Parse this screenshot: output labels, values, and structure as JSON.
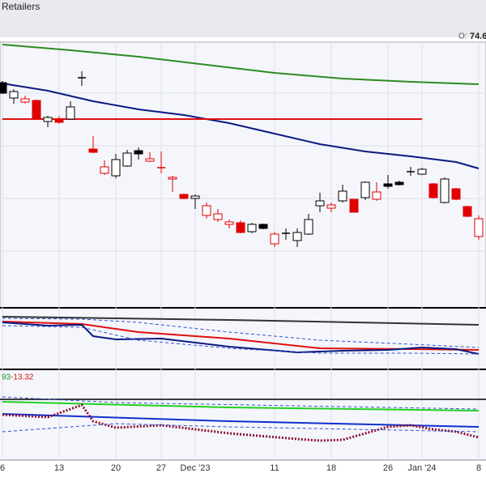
{
  "header": {
    "title": "Retailers",
    "open_label": "O:",
    "open_value": "74.6"
  },
  "panel3_labels": [
    "93",
    "-13.32"
  ],
  "chart_data": {
    "type": "candlestick",
    "categories": [
      "6",
      null,
      null,
      null,
      null,
      "13",
      null,
      null,
      null,
      null,
      "20",
      null,
      null,
      null,
      "27",
      null,
      null,
      "Dec '23",
      null,
      null,
      null,
      null,
      null,
      null,
      "11",
      null,
      null,
      null,
      null,
      "18",
      null,
      null,
      null,
      null,
      "26",
      null,
      null,
      "Jan '24",
      null,
      null,
      null,
      null,
      "8"
    ],
    "open": [
      278,
      259,
      254,
      256,
      230,
      233,
      233,
      284,
      196,
      166,
      163,
      175,
      194,
      181,
      173,
      159,
      140,
      135,
      114,
      109,
      103,
      105,
      94,
      103,
      79,
      92,
      83,
      91,
      126,
      123,
      132,
      134,
      136,
      134,
      153,
      155,
      168,
      165,
      153,
      130,
      147,
      125,
      88
    ],
    "high": [
      280,
      270,
      262,
      257,
      237,
      237,
      255,
      292,
      212,
      182,
      190,
      195,
      198,
      192,
      193,
      163,
      141,
      140,
      130,
      122,
      109,
      108,
      105,
      104,
      94,
      98,
      98,
      116,
      142,
      130,
      152,
      134,
      156,
      155,
      164,
      157,
      174,
      173,
      154,
      161,
      148,
      126,
      114
    ],
    "low": [
      264,
      252,
      252,
      233,
      223,
      227,
      232,
      274,
      191,
      164,
      160,
      174,
      183,
      180,
      166,
      143,
      134,
      122,
      110,
      106,
      98,
      92,
      92,
      97,
      75,
      84,
      75,
      90,
      118,
      118,
      130,
      118,
      133,
      132,
      147,
      151,
      163,
      164,
      135,
      129,
      133,
      112,
      84
    ],
    "close": [
      265,
      267,
      258,
      234,
      235,
      229,
      248,
      284,
      192,
      174,
      183,
      191,
      190,
      184,
      173,
      161,
      135,
      138,
      126,
      116,
      106,
      93,
      103,
      98,
      91,
      92,
      93,
      109,
      132,
      127,
      144,
      118,
      155,
      143,
      150,
      152,
      168,
      171,
      136,
      159,
      134,
      113,
      110
    ],
    "colors": [
      "#000000",
      "#000000",
      "#e00000",
      "#e00000",
      "#000000",
      "#e00000",
      "#000000",
      "#000000",
      "#e00000",
      "#e00000",
      "#000000",
      "#000000",
      "#000000",
      "#e00000",
      "#e00000",
      "#e00000",
      "#e00000",
      "#000000",
      "#e00000",
      "#e00000",
      "#e00000",
      "#e00000",
      "#000000",
      "#000000",
      "#e00000",
      "#000000",
      "#000000",
      "#000000",
      "#000000",
      "#e00000",
      "#000000",
      "#e00000",
      "#000000",
      "#e00000",
      "#000000",
      "#000000",
      "#000000",
      "#000000",
      "#e00000",
      "#000000",
      "#e00000",
      "#e00000",
      "#e00000"
    ],
    "ylim": [
      0,
      328
    ],
    "overlays": [
      {
        "color": "#2e8b20",
        "x": [
          0,
          6,
          12,
          18,
          24,
          30,
          36,
          42
        ],
        "values": [
          325,
          318,
          310,
          300,
          290,
          283,
          279,
          276
        ]
      },
      {
        "color": "#0a1a80",
        "x": [
          0,
          4,
          8,
          12,
          16,
          20,
          24,
          28,
          32,
          36,
          40,
          42
        ],
        "values": [
          277,
          268,
          255,
          245,
          238,
          228,
          215,
          202,
          193,
          187,
          180,
          172
        ]
      },
      {
        "color": "#e01010",
        "x": [
          0,
          37
        ],
        "values": [
          233,
          233
        ]
      }
    ],
    "panel2": {
      "ylim": [
        0,
        74
      ],
      "series": [
        {
          "color": "#333333",
          "x": [
            0,
            20,
            42
          ],
          "values": [
            64,
            60,
            54
          ]
        },
        {
          "color": "#e01010",
          "x": [
            0,
            7,
            12,
            20,
            28,
            36,
            42
          ],
          "values": [
            58,
            55,
            45,
            37,
            25,
            24,
            23
          ]
        },
        {
          "color": "#0a1a80",
          "x": [
            0,
            4,
            7,
            8,
            10,
            14,
            20,
            26,
            30,
            34,
            37,
            40,
            42
          ],
          "values": [
            57,
            53,
            54,
            40,
            36,
            37,
            27,
            20,
            22,
            23,
            26,
            24,
            18
          ]
        },
        {
          "color": "#3050d0",
          "dashed": true,
          "x": [
            0,
            7,
            12,
            20,
            28,
            36,
            42
          ],
          "values": [
            62,
            61,
            57,
            45,
            35,
            30,
            26
          ]
        },
        {
          "color": "#3050d0",
          "dashed": true,
          "x": [
            0,
            7,
            12,
            20,
            28,
            36,
            42
          ],
          "values": [
            53,
            51,
            35,
            25,
            19,
            19,
            18
          ]
        }
      ]
    },
    "panel3": {
      "ylim": [
        0,
        111
      ],
      "level": 75,
      "series": [
        {
          "color": "#20d020",
          "x": [
            0,
            20,
            42
          ],
          "values": [
            72,
            65,
            61
          ]
        },
        {
          "color": "#1030d0",
          "x": [
            0,
            20,
            42
          ],
          "values": [
            57,
            48,
            41
          ]
        },
        {
          "color": "#8b1030",
          "dotted": true,
          "x": [
            0,
            4,
            6,
            7,
            8,
            10,
            14,
            20,
            26,
            28,
            30,
            32,
            34,
            36,
            38,
            40,
            42
          ],
          "values": [
            56,
            53,
            63,
            68,
            48,
            40,
            43,
            33,
            26,
            24,
            25,
            33,
            41,
            43,
            38,
            35,
            28
          ]
        },
        {
          "color": "#3050d0",
          "dashed": true,
          "x": [
            0,
            10,
            42
          ],
          "values": [
            78,
            71,
            63
          ]
        },
        {
          "color": "#3050d0",
          "dashed": true,
          "x": [
            0,
            10,
            20,
            42
          ],
          "values": [
            35,
            45,
            41,
            35
          ]
        }
      ]
    }
  }
}
